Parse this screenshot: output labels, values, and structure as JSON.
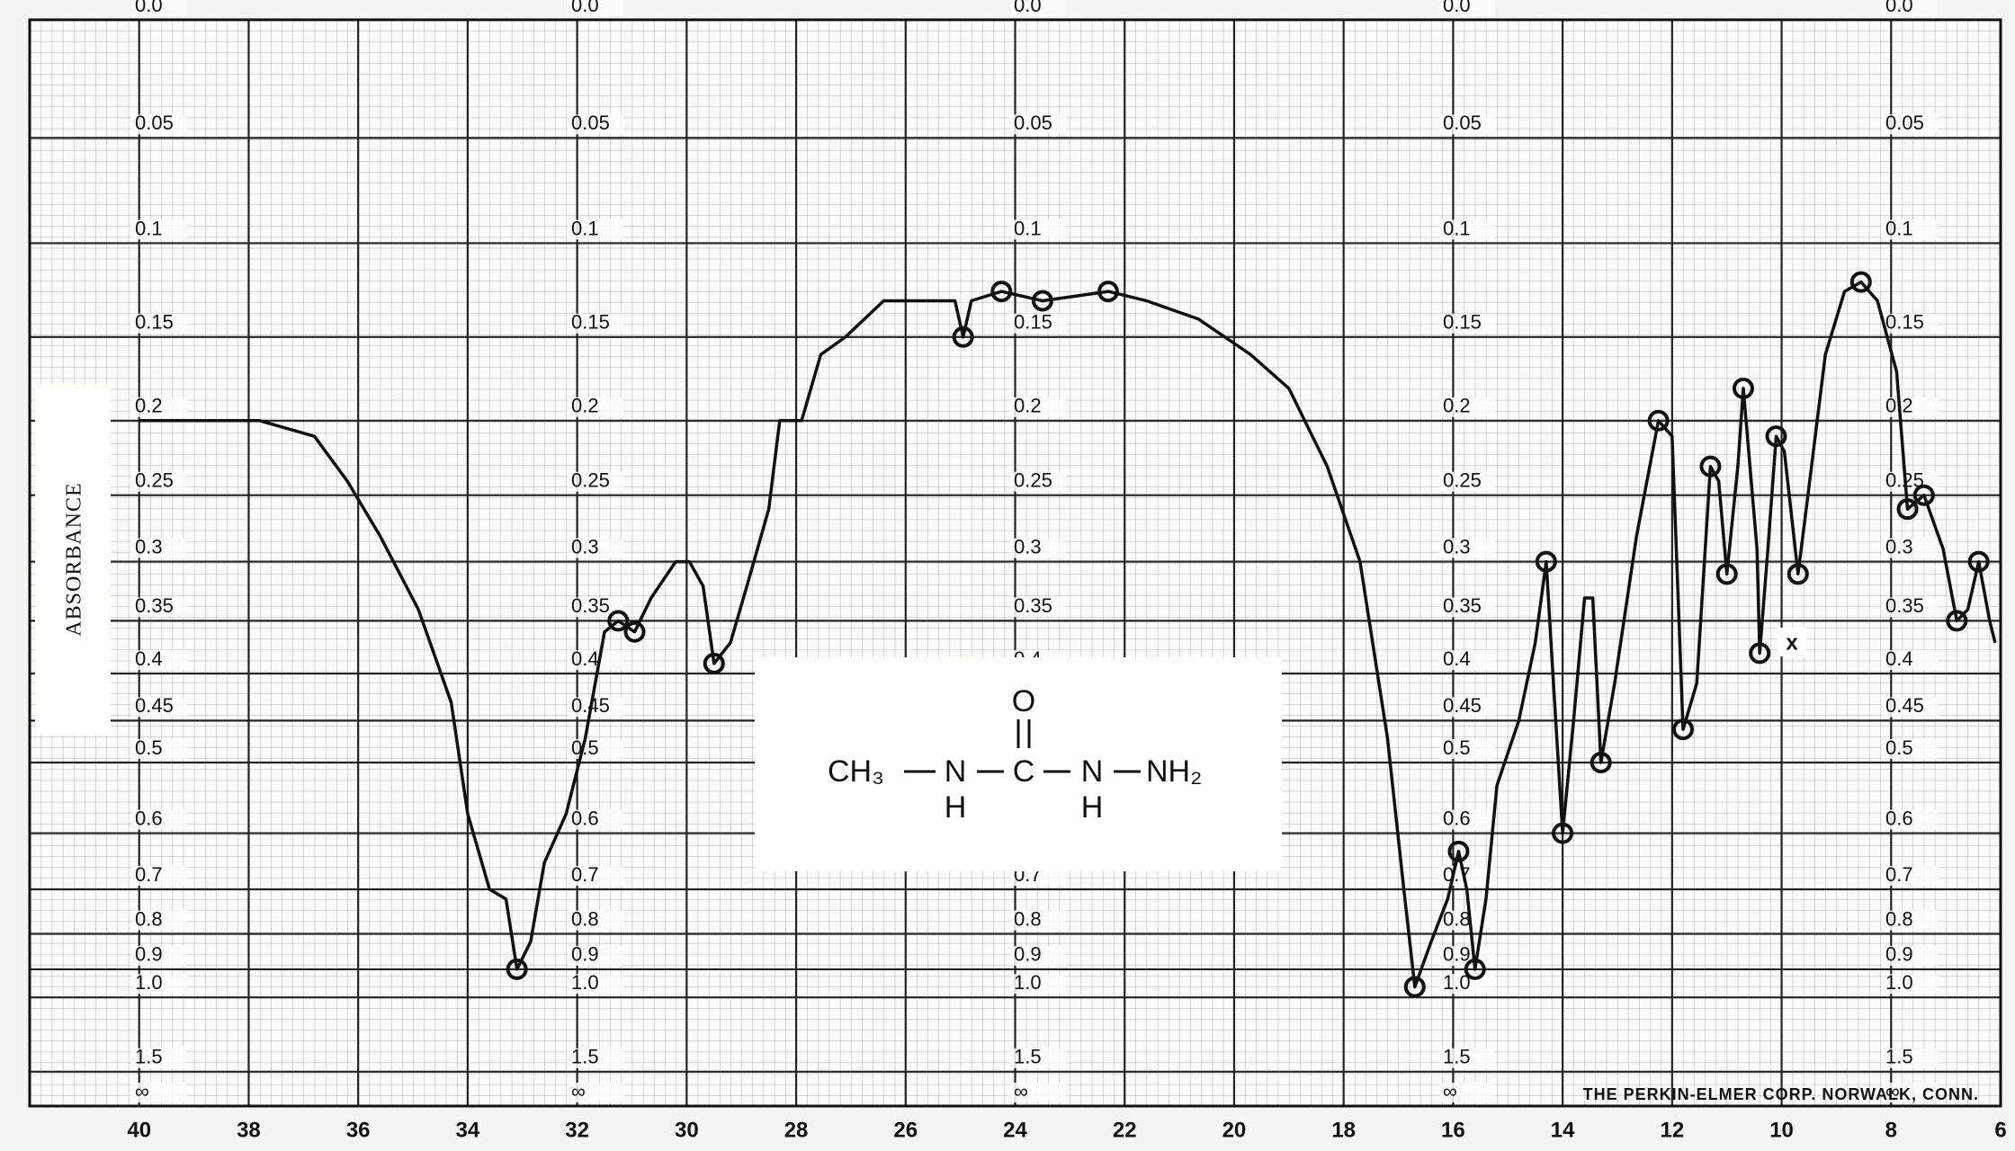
{
  "chart_data": {
    "type": "line",
    "y_axis_label": "ABSORBANCE",
    "footer": "THE PERKIN-ELMER CORP. NORWALK, CONN.",
    "structure": {
      "groups": [
        "CH₃",
        "N",
        "C",
        "N",
        "NH₂"
      ],
      "carbonyl": "O",
      "hydrogens": [
        "H",
        "H"
      ]
    },
    "annotation": "x",
    "xlim": [
      42,
      6
    ],
    "xticks": [
      40,
      38,
      36,
      34,
      32,
      30,
      28,
      26,
      24,
      22,
      20,
      18,
      16,
      14,
      12,
      10,
      8,
      6
    ],
    "yscale": "absorbance",
    "ylim": [
      0,
      null
    ],
    "yticks": [
      {
        "value": 0,
        "label": "0.0"
      },
      0.05,
      0.1,
      0.15,
      0.2,
      0.25,
      0.3,
      0.35,
      0.4,
      0.45,
      0.5,
      0.6,
      0.7,
      0.8,
      0.9,
      {
        "value": 1,
        "label": "1.0"
      },
      1.5,
      {
        "value": null,
        "label": "∞"
      }
    ],
    "grid": true,
    "series": [
      {
        "color": "#111111",
        "x": [
          40.0,
          39.0,
          37.8,
          36.8,
          36.2,
          35.6,
          34.9,
          34.3,
          34.0,
          33.6,
          33.3,
          33.1,
          32.85,
          32.6,
          32.2,
          31.85,
          31.5,
          31.25,
          30.95,
          30.65,
          30.2,
          29.95,
          29.7,
          29.5,
          29.2,
          28.9,
          28.5,
          28.3,
          27.9,
          27.55,
          27.1,
          26.4,
          25.9,
          25.1,
          24.95,
          24.8,
          24.25,
          23.5,
          22.3,
          21.6,
          20.65,
          19.7,
          19.0,
          18.3,
          17.7,
          17.2,
          16.9,
          16.7,
          16.4,
          16.1,
          15.9,
          15.75,
          15.6,
          15.4,
          15.2,
          14.8,
          14.5,
          14.3,
          14.2,
          14.0,
          13.8,
          13.6,
          13.45,
          13.3,
          13.05,
          12.65,
          12.25,
          12.0,
          11.8,
          11.55,
          11.3,
          11.15,
          11.0,
          10.8,
          10.7,
          10.45,
          10.4,
          10.25,
          10.1,
          9.95,
          9.7,
          9.55,
          9.2,
          8.85,
          8.55,
          8.25,
          7.9,
          7.7,
          7.4,
          7.05,
          6.8,
          6.6,
          6.4,
          6.2,
          6.1
        ],
        "values": [
          0.2,
          0.2,
          0.2,
          0.21,
          0.24,
          0.28,
          0.34,
          0.43,
          0.57,
          0.7,
          0.72,
          0.9,
          0.82,
          0.65,
          0.57,
          0.47,
          0.36,
          0.35,
          0.36,
          0.33,
          0.3,
          0.3,
          0.32,
          0.39,
          0.37,
          0.32,
          0.26,
          0.2,
          0.2,
          0.16,
          0.15,
          0.13,
          0.13,
          0.13,
          0.15,
          0.13,
          0.125,
          0.13,
          0.125,
          0.13,
          0.14,
          0.16,
          0.18,
          0.23,
          0.3,
          0.47,
          0.7,
          0.96,
          0.82,
          0.72,
          0.63,
          0.7,
          0.9,
          0.72,
          0.53,
          0.45,
          0.37,
          0.3,
          0.38,
          0.6,
          0.45,
          0.33,
          0.33,
          0.5,
          0.41,
          0.28,
          0.2,
          0.21,
          0.46,
          0.41,
          0.23,
          0.24,
          0.31,
          0.23,
          0.18,
          0.29,
          0.38,
          0.29,
          0.21,
          0.22,
          0.31,
          0.26,
          0.16,
          0.125,
          0.12,
          0.13,
          0.17,
          0.26,
          0.25,
          0.29,
          0.35,
          0.34,
          0.3,
          0.35,
          0.37
        ]
      }
    ]
  }
}
